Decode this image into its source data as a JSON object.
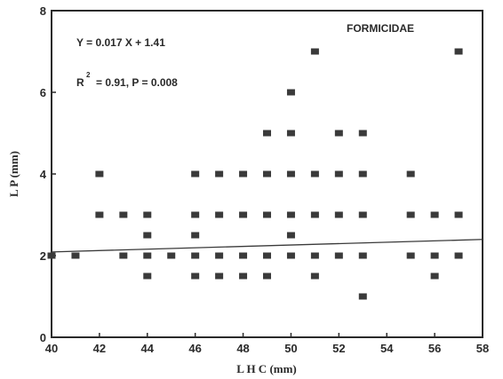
{
  "chart_data": {
    "type": "scatter",
    "title": "FORMICIDAE",
    "xlabel": "L H C (mm)",
    "ylabel": "L P (mm)",
    "xlim": [
      40,
      58
    ],
    "ylim": [
      0,
      8
    ],
    "x_ticks": [
      "40",
      "42",
      "44",
      "46",
      "48",
      "50",
      "52",
      "54",
      "56",
      "58"
    ],
    "y_ticks": [
      "0",
      "2",
      "4",
      "6",
      "8"
    ],
    "grid": false,
    "annotations": {
      "equation": "Y = 0.017 X + 1.41",
      "r_symbol": "R",
      "r_exponent": "2",
      "stats": "= 0.91, P = 0.008"
    },
    "regression": {
      "slope": 0.017,
      "intercept": 1.41,
      "x_range": [
        40,
        58
      ]
    },
    "points": [
      {
        "x": 40,
        "y": 2
      },
      {
        "x": 41,
        "y": 2
      },
      {
        "x": 42,
        "y": 4
      },
      {
        "x": 42,
        "y": 3
      },
      {
        "x": 43,
        "y": 3
      },
      {
        "x": 43,
        "y": 2
      },
      {
        "x": 44,
        "y": 3
      },
      {
        "x": 44,
        "y": 2.5
      },
      {
        "x": 44,
        "y": 2
      },
      {
        "x": 44,
        "y": 1.5
      },
      {
        "x": 45,
        "y": 2
      },
      {
        "x": 46,
        "y": 4
      },
      {
        "x": 46,
        "y": 3
      },
      {
        "x": 46,
        "y": 2.5
      },
      {
        "x": 46,
        "y": 2
      },
      {
        "x": 46,
        "y": 1.5
      },
      {
        "x": 47,
        "y": 4
      },
      {
        "x": 47,
        "y": 3
      },
      {
        "x": 47,
        "y": 2
      },
      {
        "x": 47,
        "y": 1.5
      },
      {
        "x": 48,
        "y": 4
      },
      {
        "x": 48,
        "y": 3
      },
      {
        "x": 48,
        "y": 2
      },
      {
        "x": 48,
        "y": 1.5
      },
      {
        "x": 49,
        "y": 5
      },
      {
        "x": 49,
        "y": 4
      },
      {
        "x": 49,
        "y": 3
      },
      {
        "x": 49,
        "y": 2
      },
      {
        "x": 49,
        "y": 1.5
      },
      {
        "x": 50,
        "y": 6
      },
      {
        "x": 50,
        "y": 5
      },
      {
        "x": 50,
        "y": 4
      },
      {
        "x": 50,
        "y": 3
      },
      {
        "x": 50,
        "y": 2.5
      },
      {
        "x": 50,
        "y": 2
      },
      {
        "x": 51,
        "y": 7
      },
      {
        "x": 51,
        "y": 4
      },
      {
        "x": 51,
        "y": 3
      },
      {
        "x": 51,
        "y": 2
      },
      {
        "x": 51,
        "y": 1.5
      },
      {
        "x": 52,
        "y": 5
      },
      {
        "x": 52,
        "y": 4
      },
      {
        "x": 52,
        "y": 3
      },
      {
        "x": 52,
        "y": 2
      },
      {
        "x": 53,
        "y": 5
      },
      {
        "x": 53,
        "y": 4
      },
      {
        "x": 53,
        "y": 3
      },
      {
        "x": 53,
        "y": 2
      },
      {
        "x": 53,
        "y": 1
      },
      {
        "x": 55,
        "y": 4
      },
      {
        "x": 55,
        "y": 3
      },
      {
        "x": 55,
        "y": 2
      },
      {
        "x": 56,
        "y": 3
      },
      {
        "x": 56,
        "y": 2
      },
      {
        "x": 56,
        "y": 1.5
      },
      {
        "x": 57,
        "y": 7
      },
      {
        "x": 57,
        "y": 3
      },
      {
        "x": 57,
        "y": 2
      }
    ]
  }
}
